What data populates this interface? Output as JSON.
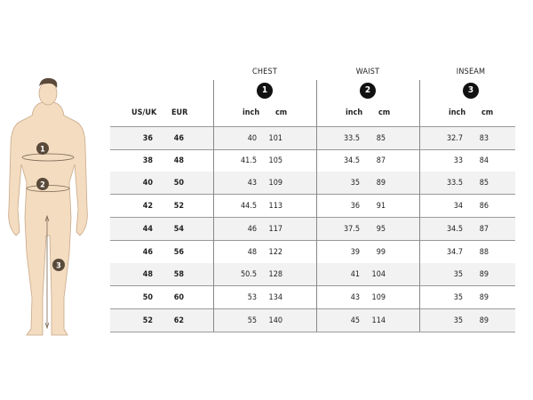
{
  "groups": [
    {
      "title": "CHEST",
      "badge": "1"
    },
    {
      "title": "WAIST",
      "badge": "2"
    },
    {
      "title": "INSEAM",
      "badge": "3"
    }
  ],
  "headers": {
    "us_uk": "US/UK",
    "eur": "EUR",
    "inch": "inch",
    "cm": "cm"
  },
  "figure": {
    "markers": [
      "1",
      "2",
      "3"
    ],
    "skin_color": "#f3dcc0",
    "marker_color": "#5a4a3a"
  },
  "rows": [
    [
      "36",
      "46",
      "40",
      "101",
      "33.5",
      "85",
      "32.7",
      "83"
    ],
    [
      "38",
      "48",
      "41.5",
      "105",
      "34.5",
      "87",
      "33",
      "84"
    ],
    [
      "40",
      "50",
      "43",
      "109",
      "35",
      "89",
      "33.5",
      "85"
    ],
    [
      "42",
      "52",
      "44.5",
      "113",
      "36",
      "91",
      "34",
      "86"
    ],
    [
      "44",
      "54",
      "46",
      "117",
      "37.5",
      "95",
      "34.5",
      "87"
    ],
    [
      "46",
      "56",
      "48",
      "122",
      "39",
      "99",
      "34.7",
      "88"
    ],
    [
      "48",
      "58",
      "50.5",
      "128",
      "41",
      "104",
      "35",
      "89"
    ],
    [
      "50",
      "60",
      "53",
      "134",
      "43",
      "109",
      "35",
      "89"
    ],
    [
      "52",
      "62",
      "55",
      "140",
      "45",
      "114",
      "35",
      "89"
    ]
  ]
}
